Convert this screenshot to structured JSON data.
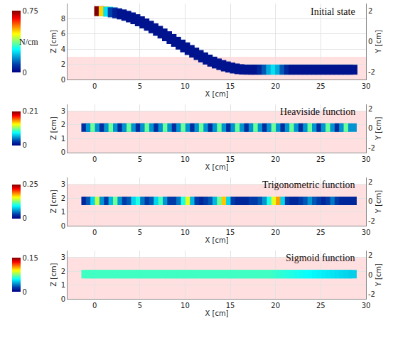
{
  "chart_data": [
    {
      "type": "scatter",
      "title": "Initial state",
      "x_label": "X [cm]",
      "y_label": "Z [cm]",
      "y2_label": "Y [cm]",
      "xlim": [
        -3,
        30
      ],
      "xticks": [
        0,
        5,
        10,
        15,
        20,
        25,
        30
      ],
      "ylim": [
        0,
        10
      ],
      "yticks": [
        0,
        2,
        4,
        6,
        8
      ],
      "y2lim": [
        -2.5,
        2.5
      ],
      "y2ticks": [
        -2,
        0,
        2
      ],
      "grid": true,
      "marker": "square",
      "color": "Jet",
      "colorbar": {
        "label": "N/cm",
        "range": [
          0,
          0.75
        ],
        "ticks": [
          0,
          0.75
        ]
      },
      "x": [
        0.5,
        1,
        1.5,
        2,
        2.5,
        3,
        3.5,
        4,
        4.5,
        5,
        5.5,
        6,
        6.5,
        7,
        7.5,
        8,
        8.5,
        9,
        9.5,
        10,
        10.5,
        11,
        11.5,
        12,
        12.5,
        13,
        13.5,
        14,
        14.5,
        15,
        15.5,
        16,
        16.5,
        17,
        17.5,
        18,
        18.5,
        19,
        19.5,
        20,
        20.5,
        21,
        21.5,
        22,
        22.5,
        23,
        23.5,
        24,
        24.5,
        25,
        25.5,
        26,
        26.5,
        27,
        27.5,
        28,
        28.5
      ],
      "y": [
        9.0,
        8.98,
        8.93,
        8.84,
        8.72,
        8.57,
        8.39,
        8.18,
        7.94,
        7.67,
        7.38,
        7.08,
        6.75,
        6.41,
        6.06,
        5.7,
        5.33,
        4.97,
        4.6,
        4.24,
        3.89,
        3.55,
        3.23,
        2.92,
        2.63,
        2.36,
        2.12,
        1.91,
        1.73,
        1.58,
        1.46,
        1.37,
        1.32,
        1.3,
        1.3,
        1.3,
        1.3,
        1.3,
        1.3,
        1.3,
        1.3,
        1.3,
        1.3,
        1.3,
        1.3,
        1.3,
        1.3,
        1.3,
        1.3,
        1.3,
        1.3,
        1.3,
        1.3,
        1.3,
        1.3,
        1.3,
        1.3
      ],
      "values": [
        0.75,
        0.5,
        0.25,
        0.1,
        0.05,
        0.03,
        0.03,
        0.03,
        0.03,
        0.03,
        0.03,
        0.03,
        0.03,
        0.03,
        0.03,
        0.03,
        0.03,
        0.03,
        0.03,
        0.03,
        0.03,
        0.03,
        0.03,
        0.03,
        0.03,
        0.03,
        0.03,
        0.03,
        0.03,
        0.03,
        0.03,
        0.03,
        0.03,
        0.03,
        0.03,
        0.03,
        0.06,
        0.12,
        0.2,
        0.25,
        0.2,
        0.12,
        0.06,
        0.03,
        0.03,
        0.03,
        0.03,
        0.03,
        0.03,
        0.03,
        0.03,
        0.03,
        0.03,
        0.03,
        0.03,
        0.03,
        0.03
      ]
    },
    {
      "type": "scatter",
      "title": "Heaviside function",
      "x_label": "X [cm]",
      "y_label": "Z [cm]",
      "y2_label": "Y [cm]",
      "xlim": [
        -3,
        30
      ],
      "xticks": [
        0,
        5,
        10,
        15,
        20,
        25,
        30
      ],
      "ylim": [
        0,
        3.5
      ],
      "yticks": [
        0,
        1,
        2,
        3
      ],
      "y2lim": [
        -2.5,
        2.5
      ],
      "y2ticks": [
        -2,
        0,
        2
      ],
      "grid": true,
      "marker": "square",
      "color": "Jet",
      "colorbar": {
        "range": [
          0,
          0.21
        ],
        "ticks": [
          0,
          0.21
        ]
      },
      "x": [
        -1,
        -0.5,
        0,
        0.5,
        1,
        1.5,
        2,
        2.5,
        3,
        3.5,
        4,
        4.5,
        5,
        5.5,
        6,
        6.5,
        7,
        7.5,
        8,
        8.5,
        9,
        9.5,
        10,
        10.5,
        11,
        11.5,
        12,
        12.5,
        13,
        13.5,
        14,
        14.5,
        15,
        15.5,
        16,
        16.5,
        17,
        17.5,
        18,
        18.5,
        19,
        19.5,
        20,
        20.5,
        21,
        21.5,
        22,
        22.5,
        23,
        23.5,
        24,
        24.5,
        25,
        25.5,
        26,
        26.5,
        27,
        27.5,
        28,
        28.5
      ],
      "y": [
        1.8,
        1.8,
        1.8,
        1.8,
        1.8,
        1.8,
        1.8,
        1.8,
        1.8,
        1.8,
        1.8,
        1.8,
        1.8,
        1.8,
        1.8,
        1.8,
        1.8,
        1.8,
        1.8,
        1.8,
        1.8,
        1.8,
        1.8,
        1.8,
        1.8,
        1.8,
        1.8,
        1.8,
        1.8,
        1.8,
        1.8,
        1.8,
        1.8,
        1.8,
        1.8,
        1.8,
        1.8,
        1.8,
        1.8,
        1.8,
        1.8,
        1.8,
        1.8,
        1.8,
        1.8,
        1.8,
        1.8,
        1.8,
        1.8,
        1.8,
        1.8,
        1.8,
        1.8,
        1.8,
        1.8,
        1.8,
        1.8,
        1.8,
        1.8,
        1.8
      ],
      "values": [
        0.02,
        0.05,
        0.1,
        0.05,
        0.02,
        0.05,
        0.1,
        0.05,
        0.02,
        0.05,
        0.1,
        0.05,
        0.02,
        0.05,
        0.1,
        0.05,
        0.02,
        0.05,
        0.1,
        0.05,
        0.02,
        0.05,
        0.1,
        0.05,
        0.02,
        0.05,
        0.1,
        0.05,
        0.02,
        0.05,
        0.1,
        0.05,
        0.02,
        0.05,
        0.1,
        0.05,
        0.02,
        0.05,
        0.1,
        0.05,
        0.02,
        0.05,
        0.1,
        0.05,
        0.02,
        0.05,
        0.1,
        0.05,
        0.02,
        0.05,
        0.1,
        0.05,
        0.02,
        0.05,
        0.1,
        0.05,
        0.02,
        0.05,
        0.1,
        0.05
      ]
    },
    {
      "type": "scatter",
      "title": "Trigonometric function",
      "x_label": "X [cm]",
      "y_label": "Z [cm]",
      "y2_label": "Y [cm]",
      "xlim": [
        -3,
        30
      ],
      "xticks": [
        0,
        5,
        10,
        15,
        20,
        25,
        30
      ],
      "ylim": [
        0,
        3.5
      ],
      "yticks": [
        0,
        1,
        2,
        3
      ],
      "y2lim": [
        -2.5,
        2.5
      ],
      "y2ticks": [
        -2,
        0,
        2
      ],
      "grid": true,
      "marker": "square",
      "color": "Jet",
      "colorbar": {
        "range": [
          0,
          0.25
        ],
        "ticks": [
          0,
          0.25
        ]
      },
      "x": [
        -1,
        -0.5,
        0,
        0.5,
        1,
        1.5,
        2,
        2.5,
        3,
        3.5,
        4,
        4.5,
        5,
        5.5,
        6,
        6.5,
        7,
        7.5,
        8,
        8.5,
        9,
        9.5,
        10,
        10.5,
        11,
        11.5,
        12,
        12.5,
        13,
        13.5,
        14,
        14.5,
        15,
        15.5,
        16,
        16.5,
        17,
        17.5,
        18,
        18.5,
        19,
        19.5,
        20,
        20.5,
        21,
        21.5,
        22,
        22.5,
        23,
        23.5,
        24,
        24.5,
        25,
        25.5,
        26,
        26.5,
        27,
        27.5,
        28,
        28.5
      ],
      "y": [
        1.8,
        1.8,
        1.8,
        1.8,
        1.8,
        1.8,
        1.8,
        1.8,
        1.8,
        1.8,
        1.8,
        1.8,
        1.8,
        1.8,
        1.8,
        1.8,
        1.8,
        1.8,
        1.8,
        1.8,
        1.8,
        1.8,
        1.8,
        1.8,
        1.8,
        1.8,
        1.8,
        1.8,
        1.8,
        1.8,
        1.8,
        1.8,
        1.8,
        1.8,
        1.8,
        1.8,
        1.8,
        1.8,
        1.8,
        1.8,
        1.8,
        1.8,
        1.8,
        1.8,
        1.8,
        1.8,
        1.8,
        1.8,
        1.8,
        1.8,
        1.8,
        1.8,
        1.8,
        1.8,
        1.8,
        1.8,
        1.8,
        1.8,
        1.8,
        1.8
      ],
      "values": [
        0.02,
        0.04,
        0.08,
        0.14,
        0.06,
        0.03,
        0.07,
        0.12,
        0.06,
        0.03,
        0.04,
        0.08,
        0.1,
        0.05,
        0.03,
        0.04,
        0.08,
        0.11,
        0.06,
        0.03,
        0.03,
        0.05,
        0.1,
        0.15,
        0.07,
        0.03,
        0.02,
        0.03,
        0.04,
        0.07,
        0.12,
        0.17,
        0.08,
        0.03,
        0.02,
        0.02,
        0.02,
        0.03,
        0.03,
        0.04,
        0.06,
        0.1,
        0.15,
        0.18,
        0.08,
        0.03,
        0.02,
        0.02,
        0.03,
        0.04,
        0.06,
        0.04,
        0.03,
        0.02,
        0.03,
        0.05,
        0.03,
        0.02,
        0.02,
        0.02
      ]
    },
    {
      "type": "scatter",
      "title": "Sigmoid function",
      "x_label": "X [cm]",
      "y_label": "Z [cm]",
      "y2_label": "Y [cm]",
      "xlim": [
        -3,
        30
      ],
      "xticks": [
        0,
        5,
        10,
        15,
        20,
        25,
        30
      ],
      "ylim": [
        0,
        3.5
      ],
      "yticks": [
        0,
        1,
        2,
        3
      ],
      "y2lim": [
        -2.5,
        2.5
      ],
      "y2ticks": [
        -2,
        0,
        2
      ],
      "grid": true,
      "marker": "square",
      "color": "Jet",
      "colorbar": {
        "range": [
          0,
          0.15
        ],
        "ticks": [
          0,
          0.15
        ]
      },
      "x": [
        -1,
        -0.5,
        0,
        0.5,
        1,
        1.5,
        2,
        2.5,
        3,
        3.5,
        4,
        4.5,
        5,
        5.5,
        6,
        6.5,
        7,
        7.5,
        8,
        8.5,
        9,
        9.5,
        10,
        10.5,
        11,
        11.5,
        12,
        12.5,
        13,
        13.5,
        14,
        14.5,
        15,
        15.5,
        16,
        16.5,
        17,
        17.5,
        18,
        18.5,
        19,
        19.5,
        20,
        20.5,
        21,
        21.5,
        22,
        22.5,
        23,
        23.5,
        24,
        24.5,
        25,
        25.5,
        26,
        26.5,
        27,
        27.5,
        28,
        28.5
      ],
      "y": [
        1.8,
        1.8,
        1.8,
        1.8,
        1.8,
        1.8,
        1.8,
        1.8,
        1.8,
        1.8,
        1.8,
        1.8,
        1.8,
        1.8,
        1.8,
        1.8,
        1.8,
        1.8,
        1.8,
        1.8,
        1.8,
        1.8,
        1.8,
        1.8,
        1.8,
        1.8,
        1.8,
        1.8,
        1.8,
        1.8,
        1.8,
        1.8,
        1.8,
        1.8,
        1.8,
        1.8,
        1.8,
        1.8,
        1.8,
        1.8,
        1.8,
        1.8,
        1.8,
        1.8,
        1.8,
        1.8,
        1.8,
        1.8,
        1.8,
        1.8,
        1.8,
        1.8,
        1.8,
        1.8,
        1.8,
        1.8,
        1.8,
        1.8,
        1.8,
        1.8
      ],
      "values": [
        0.065,
        0.065,
        0.065,
        0.065,
        0.065,
        0.065,
        0.065,
        0.065,
        0.065,
        0.065,
        0.065,
        0.065,
        0.065,
        0.065,
        0.065,
        0.065,
        0.065,
        0.065,
        0.065,
        0.065,
        0.065,
        0.065,
        0.065,
        0.065,
        0.065,
        0.065,
        0.065,
        0.065,
        0.065,
        0.065,
        0.065,
        0.065,
        0.065,
        0.065,
        0.065,
        0.065,
        0.065,
        0.065,
        0.065,
        0.065,
        0.065,
        0.065,
        0.064,
        0.063,
        0.062,
        0.061,
        0.06,
        0.059,
        0.058,
        0.057,
        0.056,
        0.055,
        0.054,
        0.053,
        0.052,
        0.051,
        0.05,
        0.049,
        0.048,
        0.047
      ]
    }
  ]
}
